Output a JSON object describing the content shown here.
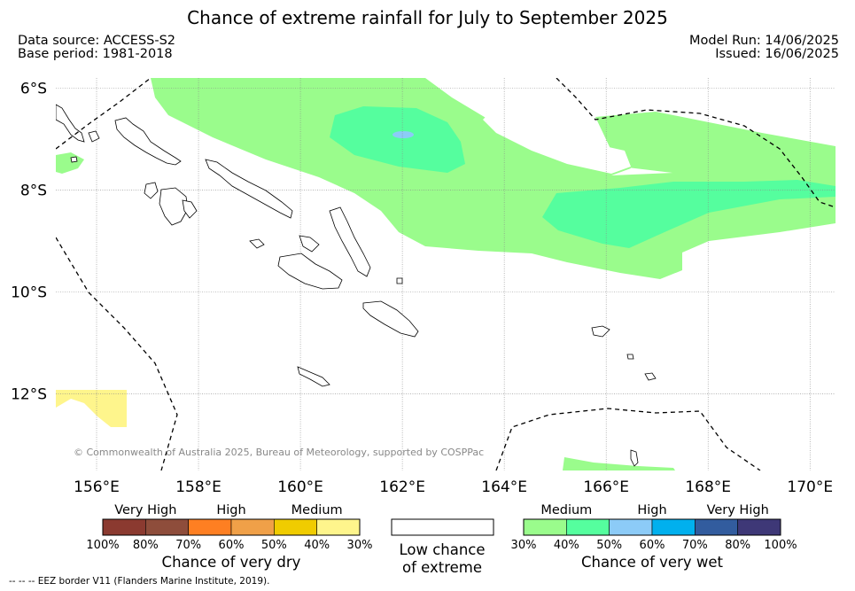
{
  "title": "Chance of extreme rainfall for July to September 2025",
  "data_source": "Data source: ACCESS-S2",
  "base_period": "Base period: 1981-2018",
  "model_run": "Model Run: 14/06/2025",
  "issued": "Issued: 16/06/2025",
  "copyright": "© Commonwealth of Australia 2025, Bureau of Meteorology, supported by COSPPac",
  "eez_note": "--  --  -- EEZ border V11 (Flanders Marine Institute, 2019).",
  "map": {
    "lon_range": [
      155.2,
      170.5
    ],
    "lat_range": [
      -13.5,
      -5.8
    ],
    "lat_ticks": [
      {
        "value": -6,
        "label": "6°S"
      },
      {
        "value": -8,
        "label": "8°S"
      },
      {
        "value": -10,
        "label": "10°S"
      },
      {
        "value": -12,
        "label": "12°S"
      }
    ],
    "lon_ticks": [
      {
        "value": 156,
        "label": "156°E"
      },
      {
        "value": 158,
        "label": "158°E"
      },
      {
        "value": 160,
        "label": "160°E"
      },
      {
        "value": 162,
        "label": "162°E"
      },
      {
        "value": 164,
        "label": "164°E"
      },
      {
        "value": 166,
        "label": "166°E"
      },
      {
        "value": 168,
        "label": "168°E"
      },
      {
        "value": 170,
        "label": "170°E"
      }
    ],
    "grid": true,
    "colors": {
      "medium_wet": "#9afc8c",
      "high_wet": "#55fe9e",
      "very_high_wet": "#8ccbf7",
      "medium_dry": "#fef58c",
      "coast": "#000000",
      "eez": "#000000"
    }
  },
  "legend_dry": {
    "headings": [
      "Very High",
      "High",
      "Medium"
    ],
    "colors": [
      "#8b3a30",
      "#8e4d3b",
      "#fe7f22",
      "#f0a048",
      "#f0cc00",
      "#fef58c"
    ],
    "ticks": [
      "100%",
      "80%",
      "70%",
      "60%",
      "50%",
      "40%",
      "30%"
    ],
    "title": "Chance of very dry"
  },
  "legend_low": {
    "line1": "Low chance",
    "line2": "of extreme",
    "color": "#ffffff"
  },
  "legend_wet": {
    "headings": [
      "Medium",
      "High",
      "Very High"
    ],
    "colors": [
      "#9afc8c",
      "#55fe9e",
      "#8ccbf7",
      "#01b0ee",
      "#325c9e",
      "#3e3877"
    ],
    "ticks": [
      "30%",
      "40%",
      "50%",
      "60%",
      "70%",
      "80%",
      "100%"
    ],
    "title": "Chance of very wet"
  }
}
